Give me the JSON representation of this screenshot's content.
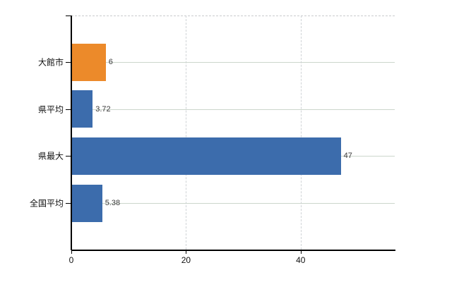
{
  "chart_data": {
    "type": "bar",
    "orientation": "horizontal",
    "categories": [
      "大館市",
      "県平均",
      "県最大",
      "全国平均"
    ],
    "values": [
      6,
      3.72,
      47,
      5.38
    ],
    "value_labels": [
      "6",
      "3.72",
      "47",
      "5.38"
    ],
    "bar_colors": [
      "#ec8a2a",
      "#3c6cac",
      "#3c6cac",
      "#3c6cac"
    ],
    "x_ticks": [
      {
        "value": 0,
        "label": "0"
      },
      {
        "value": 20,
        "label": "20"
      },
      {
        "value": 40,
        "label": "40"
      }
    ],
    "xlim": [
      0,
      56.4
    ],
    "grid": {
      "horizontal": true,
      "vertical": true
    },
    "background_color": "#ffffff"
  }
}
